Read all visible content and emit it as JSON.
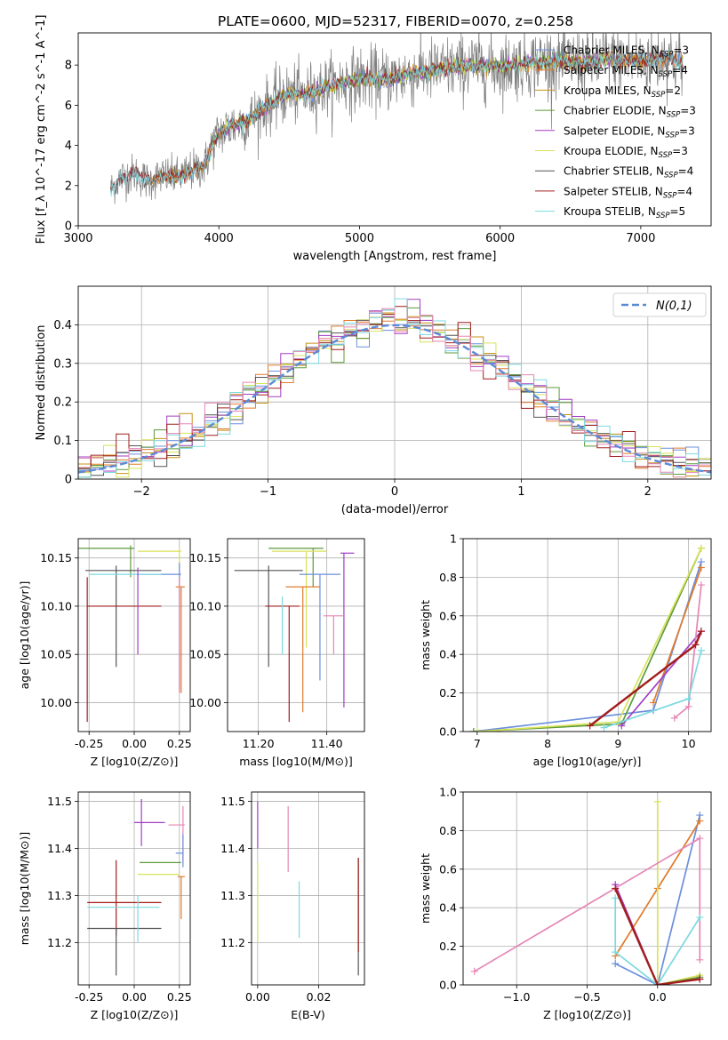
{
  "figure_title": "PLATE=0600, MJD=52317, FIBERID=0070, z=0.258",
  "colors": {
    "chabrier_miles": "#6a8fdc",
    "salpeter_miles": "#e07b2b",
    "kroupa_miles": "#c79116",
    "chabrier_elodie": "#5c9a3a",
    "salpeter_elodie": "#a23ec4",
    "kroupa_elodie": "#d8e25a",
    "chabrier_stelib": "#555555",
    "salpeter_stelib": "#a21d1d",
    "kroupa_stelib": "#7dd9e0",
    "data": "#7f7f7f",
    "pink": "#e586b4",
    "normal_curve": "#5b8ad6"
  },
  "chart_data": [
    {
      "id": "spectrum",
      "type": "line",
      "title": "PLATE=0600, MJD=52317, FIBERID=0070, z=0.258",
      "xlabel": "wavelength [Angstrom, rest frame]",
      "ylabel": "Flux [f_λ 10^-17 erg cm^-2 s^-1 A^-1]",
      "xlim": [
        3000,
        7500
      ],
      "ylim": [
        0,
        9.6
      ],
      "xticks": [
        3000,
        4000,
        5000,
        6000,
        7000
      ],
      "yticks": [
        0,
        2,
        4,
        6,
        8
      ],
      "grid": false,
      "legend_position": "top-right",
      "legend": [
        {
          "label": "Chabrier MILES, N",
          "sub": "SSP",
          "suffix": "=3"
        },
        {
          "label": "Salpeter MILES, N",
          "sub": "SSP",
          "suffix": "=4"
        },
        {
          "label": "Kroupa MILES, N",
          "sub": "SSP",
          "suffix": "=2"
        },
        {
          "label": "Chabrier ELODIE, N",
          "sub": "SSP",
          "suffix": "=3"
        },
        {
          "label": "Salpeter ELODIE, N",
          "sub": "SSP",
          "suffix": "=3"
        },
        {
          "label": "Kroupa ELODIE, N",
          "sub": "SSP",
          "suffix": "=3"
        },
        {
          "label": "Chabrier STELIB, N",
          "sub": "SSP",
          "suffix": "=4"
        },
        {
          "label": "Salpeter STELIB, N",
          "sub": "SSP",
          "suffix": "=4"
        },
        {
          "label": "Kroupa STELIB, N",
          "sub": "SSP",
          "suffix": "=5"
        }
      ],
      "continuum": {
        "x": [
          3230,
          3300,
          3400,
          3500,
          3600,
          3700,
          3800,
          3900,
          3950,
          4000,
          4100,
          4200,
          4300,
          4400,
          4500,
          4600,
          4800,
          5000,
          5200,
          5400,
          5600,
          5800,
          6000,
          6200,
          6400,
          6600,
          6800,
          7000,
          7200,
          7300
        ],
        "y": [
          1.8,
          2.4,
          2.6,
          2.2,
          2.5,
          2.4,
          2.7,
          3.0,
          4.0,
          4.6,
          5.0,
          5.2,
          5.8,
          6.2,
          6.6,
          6.5,
          7.0,
          7.3,
          7.3,
          7.6,
          7.8,
          8.0,
          7.9,
          8.1,
          8.2,
          8.1,
          8.3,
          8.2,
          8.4,
          8.0
        ]
      }
    },
    {
      "id": "residuals",
      "type": "histogram",
      "xlabel": "(data-model)/error",
      "ylabel": "Normed distribution",
      "xlim": [
        -2.5,
        2.5
      ],
      "ylim": [
        0,
        0.5
      ],
      "xticks": [
        -2,
        -1,
        0,
        1,
        2
      ],
      "yticks": [
        0.0,
        0.1,
        0.2,
        0.3,
        0.4
      ],
      "grid": true,
      "legend_position": "top-right",
      "legend": [
        {
          "label": "N(0,1)"
        }
      ],
      "bin_width": 0.1,
      "normal_curve": {
        "mean": 0,
        "sigma": 1
      }
    },
    {
      "id": "age_vs_Z",
      "type": "scatter",
      "xlabel": "Z [log10(Z/Z⊙)]",
      "ylabel": "age [log10(age/yr)]",
      "xlim": [
        -0.31,
        0.31
      ],
      "ylim": [
        9.97,
        10.17
      ],
      "xticks": [
        -0.25,
        0.0,
        0.25
      ],
      "yticks": [
        10.0,
        10.05,
        10.1,
        10.15
      ],
      "grid": true,
      "crosses": [
        {
          "x": -0.02,
          "y": 10.16,
          "xerr": [
            0.32,
            0.02
          ],
          "yerr": [
            0.03,
            0.003
          ],
          "c": "chabrier_elodie"
        },
        {
          "x": 0.25,
          "y": 10.157,
          "xerr": [
            0.23,
            0.01
          ],
          "yerr": [
            0.02,
            0.003
          ],
          "c": "kroupa_elodie"
        },
        {
          "x": -0.1,
          "y": 10.137,
          "xerr": [
            0.17,
            0.25
          ],
          "yerr": [
            0.1,
            0.005
          ],
          "c": "chabrier_stelib"
        },
        {
          "x": 0.25,
          "y": 10.133,
          "xerr": [
            0.23,
            0.01
          ],
          "yerr": [
            0.12,
            0.012
          ],
          "c": "chabrier_miles"
        },
        {
          "x": -0.1,
          "y": 10.133,
          "xerr": [
            0.15,
            0.25
          ],
          "yerr": [
            0.0,
            0.0
          ],
          "c": "kroupa_stelib"
        },
        {
          "x": 0.26,
          "y": 10.12,
          "xerr": [
            0.03,
            0.02
          ],
          "yerr": [
            0.11,
            0.0
          ],
          "c": "salpeter_miles"
        },
        {
          "x": -0.26,
          "y": 10.1,
          "xerr": [
            0.0,
            0.41
          ],
          "yerr": [
            0.12,
            0.03
          ],
          "c": "salpeter_stelib"
        },
        {
          "x": 0.02,
          "y": 10.14,
          "xerr": [
            0.0,
            0.0
          ],
          "yerr": [
            0.09,
            0.0
          ],
          "c": "salpeter_elodie"
        },
        {
          "x": 0.25,
          "y": 10.13,
          "xerr": [
            0.0,
            0.0
          ],
          "yerr": [
            0.12,
            0.0
          ],
          "c": "pink"
        }
      ]
    },
    {
      "id": "age_vs_mass",
      "type": "scatter",
      "xlabel": "mass [log10(M/M⊙)]",
      "ylabel": "",
      "xlim": [
        11.11,
        11.51
      ],
      "ylim": [
        9.97,
        10.17
      ],
      "xticks": [
        11.2,
        11.4
      ],
      "yticks": [
        10.0,
        10.05,
        10.1,
        10.15
      ],
      "grid": true,
      "crosses": [
        {
          "x": 11.36,
          "y": 10.16,
          "xerr": [
            0.13,
            0.03
          ],
          "yerr": [
            0.04,
            0.0
          ],
          "c": "chabrier_elodie"
        },
        {
          "x": 11.34,
          "y": 10.157,
          "xerr": [
            0.1,
            0.06
          ],
          "yerr": [
            0.1,
            0.0
          ],
          "c": "kroupa_elodie"
        },
        {
          "x": 11.45,
          "y": 10.155,
          "xerr": [
            0.01,
            0.03
          ],
          "yerr": [
            0.16,
            0.0
          ],
          "c": "salpeter_elodie"
        },
        {
          "x": 11.23,
          "y": 10.137,
          "xerr": [
            0.1,
            0.1
          ],
          "yerr": [
            0.1,
            0.005
          ],
          "c": "chabrier_stelib"
        },
        {
          "x": 11.38,
          "y": 10.133,
          "xerr": [
            0.06,
            0.06
          ],
          "yerr": [
            0.11,
            0.0
          ],
          "c": "chabrier_miles"
        },
        {
          "x": 11.33,
          "y": 10.12,
          "xerr": [
            0.05,
            0.05
          ],
          "yerr": [
            0.13,
            0.0
          ],
          "c": "salpeter_miles"
        },
        {
          "x": 11.29,
          "y": 10.1,
          "xerr": [
            0.07,
            0.03
          ],
          "yerr": [
            0.12,
            0.0
          ],
          "c": "salpeter_stelib"
        },
        {
          "x": 11.42,
          "y": 10.09,
          "xerr": [
            0.03,
            0.03
          ],
          "yerr": [
            0.04,
            0.0
          ],
          "c": "pink"
        },
        {
          "x": 11.27,
          "y": 10.11,
          "xerr": [
            0.0,
            0.0
          ],
          "yerr": [
            0.06,
            0.0
          ],
          "c": "kroupa_stelib"
        }
      ]
    },
    {
      "id": "weight_vs_age",
      "type": "line",
      "xlabel": "age [log10(age/yr)]",
      "ylabel": "mass weight",
      "xlim": [
        6.8,
        10.32
      ],
      "ylim": [
        0.0,
        1.0
      ],
      "xticks": [
        7,
        8,
        9,
        10
      ],
      "yticks": [
        0.0,
        0.2,
        0.4,
        0.6,
        0.8,
        1.0
      ],
      "grid": true,
      "series": [
        {
          "c": "chabrier_miles",
          "x": [
            6.95,
            9.5,
            10.18
          ],
          "y": [
            0.0,
            0.11,
            0.88
          ]
        },
        {
          "c": "salpeter_miles",
          "x": [
            9.5,
            10.18
          ],
          "y": [
            0.15,
            0.85
          ]
        },
        {
          "c": "chabrier_elodie",
          "x": [
            6.95,
            9.05,
            10.18
          ],
          "y": [
            0.0,
            0.04,
            0.95
          ]
        },
        {
          "c": "kroupa_elodie",
          "x": [
            7.0,
            9.0,
            10.18
          ],
          "y": [
            0.0,
            0.05,
            0.95
          ]
        },
        {
          "c": "salpeter_elodie",
          "x": [
            9.05,
            10.18
          ],
          "y": [
            0.03,
            0.52
          ]
        },
        {
          "c": "pink",
          "x": [
            9.8,
            10.0,
            10.18
          ],
          "y": [
            0.07,
            0.13,
            0.76
          ]
        },
        {
          "c": "kroupa_stelib",
          "x": [
            8.8,
            10.0,
            10.18
          ],
          "y": [
            0.02,
            0.17,
            0.42
          ]
        },
        {
          "c": "salpeter_stelib",
          "x": [
            8.6,
            10.1,
            10.18
          ],
          "y": [
            0.03,
            0.45,
            0.52
          ]
        }
      ]
    },
    {
      "id": "mass_vs_Z",
      "type": "scatter",
      "xlabel": "Z [log10(Z/Z⊙)]",
      "ylabel": "mass [log10(M/M⊙)]",
      "xlim": [
        -0.31,
        0.31
      ],
      "ylim": [
        11.11,
        11.52
      ],
      "xticks": [
        -0.25,
        0.0,
        0.25
      ],
      "yticks": [
        11.2,
        11.3,
        11.4,
        11.5
      ],
      "grid": true,
      "crosses": [
        {
          "x": 0.04,
          "y": 11.455,
          "xerr": [
            0.04,
            0.13
          ],
          "yerr": [
            0.05,
            0.05
          ],
          "c": "salpeter_elodie"
        },
        {
          "x": 0.27,
          "y": 11.45,
          "xerr": [
            0.08,
            0.01
          ],
          "yerr": [
            0.08,
            0.04
          ],
          "c": "pink"
        },
        {
          "x": 0.27,
          "y": 11.39,
          "xerr": [
            0.04,
            0.0
          ],
          "yerr": [
            0.03,
            0.04
          ],
          "c": "chabrier_miles"
        },
        {
          "x": 0.13,
          "y": 11.37,
          "xerr": [
            0.1,
            0.13
          ],
          "yerr": [
            0.0,
            0.0
          ],
          "c": "chabrier_elodie"
        },
        {
          "x": 0.1,
          "y": 11.345,
          "xerr": [
            0.08,
            0.15
          ],
          "yerr": [
            0.0,
            0.0
          ],
          "c": "kroupa_elodie"
        },
        {
          "x": 0.26,
          "y": 11.34,
          "xerr": [
            0.02,
            0.02
          ],
          "yerr": [
            0.09,
            0.0
          ],
          "c": "salpeter_miles"
        },
        {
          "x": -0.1,
          "y": 11.285,
          "xerr": [
            0.16,
            0.25
          ],
          "yerr": [
            0.07,
            0.09
          ],
          "c": "salpeter_stelib"
        },
        {
          "x": -0.12,
          "y": 11.275,
          "xerr": [
            0.14,
            0.26
          ],
          "yerr": [
            0.0,
            0.0
          ],
          "c": "kroupa_stelib"
        },
        {
          "x": -0.1,
          "y": 11.23,
          "xerr": [
            0.16,
            0.25
          ],
          "yerr": [
            0.1,
            0.0
          ],
          "c": "chabrier_stelib"
        },
        {
          "x": 0.02,
          "y": 11.25,
          "xerr": [
            0.0,
            0.0
          ],
          "yerr": [
            0.05,
            0.05
          ],
          "c": "kroupa_stelib"
        }
      ]
    },
    {
      "id": "mass_vs_ebv",
      "type": "scatter",
      "xlabel": "E(B-V)",
      "ylabel": "",
      "xlim": [
        -0.002,
        0.035
      ],
      "ylim": [
        11.11,
        11.52
      ],
      "xticks": [
        0.0,
        0.02
      ],
      "yticks": [
        11.2,
        11.3,
        11.4,
        11.5
      ],
      "grid": true,
      "crosses": [
        {
          "x": 0.0,
          "y": 11.45,
          "xerr": [
            0,
            0
          ],
          "yerr": [
            0.05,
            0.05
          ],
          "c": "salpeter_elodie"
        },
        {
          "x": 0.0,
          "y": 11.3,
          "xerr": [
            0,
            0
          ],
          "yerr": [
            0.1,
            0.07
          ],
          "c": "kroupa_elodie"
        },
        {
          "x": 0.01,
          "y": 11.42,
          "xerr": [
            0,
            0
          ],
          "yerr": [
            0.07,
            0.07
          ],
          "c": "pink"
        },
        {
          "x": 0.0136,
          "y": 11.26,
          "xerr": [
            0,
            0
          ],
          "yerr": [
            0.05,
            0.07
          ],
          "c": "kroupa_stelib"
        },
        {
          "x": 0.033,
          "y": 11.25,
          "xerr": [
            0,
            0
          ],
          "yerr": [
            0.12,
            0.13
          ],
          "c": "chabrier_stelib"
        },
        {
          "x": 0.033,
          "y": 11.28,
          "xerr": [
            0,
            0
          ],
          "yerr": [
            0.1,
            0.1
          ],
          "c": "salpeter_stelib"
        }
      ]
    },
    {
      "id": "weight_vs_Z",
      "type": "line",
      "xlabel": "Z [log10(Z/Z⊙)]",
      "ylabel": "mass weight",
      "xlim": [
        -1.38,
        0.38
      ],
      "ylim": [
        0.0,
        1.0
      ],
      "xticks": [
        -1.0,
        -0.5,
        0.0
      ],
      "yticks": [
        0.0,
        0.2,
        0.4,
        0.6,
        0.8,
        1.0
      ],
      "grid": true,
      "series": [
        {
          "c": "chabrier_miles",
          "x": [
            -0.3,
            0.0,
            0.3
          ],
          "y": [
            0.11,
            0.0,
            0.88
          ]
        },
        {
          "c": "salpeter_miles",
          "x": [
            -0.3,
            0.0,
            0.3
          ],
          "y": [
            0.15,
            0.5,
            0.85
          ]
        },
        {
          "c": "kroupa_elodie",
          "x": [
            0.0,
            0.0,
            0.3
          ],
          "y": [
            0.95,
            0.0,
            0.05
          ]
        },
        {
          "c": "chabrier_elodie",
          "x": [
            0.0,
            0.3
          ],
          "y": [
            0.0,
            0.04
          ]
        },
        {
          "c": "salpeter_elodie",
          "x": [
            -0.3,
            0.0,
            0.3
          ],
          "y": [
            0.52,
            0.0,
            0.03
          ]
        },
        {
          "c": "pink",
          "x": [
            -1.3,
            0.3,
            0.3
          ],
          "y": [
            0.07,
            0.76,
            0.13
          ]
        },
        {
          "c": "kroupa_stelib",
          "x": [
            -0.3,
            -0.3,
            0.0,
            0.3
          ],
          "y": [
            0.45,
            0.17,
            0.0,
            0.35
          ]
        },
        {
          "c": "salpeter_stelib",
          "x": [
            -0.3,
            0.0,
            0.3
          ],
          "y": [
            0.5,
            0.0,
            0.03
          ]
        }
      ]
    }
  ]
}
